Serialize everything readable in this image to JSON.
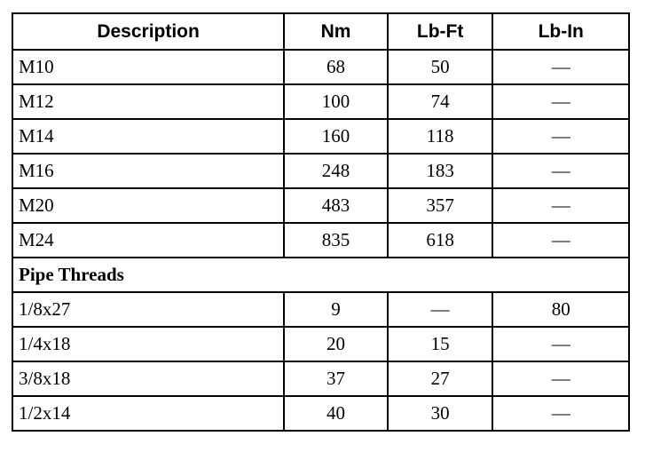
{
  "headers": [
    "Description",
    "Nm",
    "Lb-Ft",
    "Lb-In"
  ],
  "metric_rows": [
    {
      "description": "M10",
      "nm": "68",
      "lbft": "50",
      "lbin": "—"
    },
    {
      "description": "M12",
      "nm": "100",
      "lbft": "74",
      "lbin": "—"
    },
    {
      "description": "M14",
      "nm": "160",
      "lbft": "118",
      "lbin": "—"
    },
    {
      "description": "M16",
      "nm": "248",
      "lbft": "183",
      "lbin": "—"
    },
    {
      "description": "M20",
      "nm": "483",
      "lbft": "357",
      "lbin": "—"
    },
    {
      "description": "M24",
      "nm": "835",
      "lbft": "618",
      "lbin": "—"
    }
  ],
  "section_title": "Pipe Threads",
  "pipe_rows": [
    {
      "description": "1/8x27",
      "nm": "9",
      "lbft": "—",
      "lbin": "80"
    },
    {
      "description": "1/4x18",
      "nm": "20",
      "lbft": "15",
      "lbin": "—"
    },
    {
      "description": "3/8x18",
      "nm": "37",
      "lbft": "27",
      "lbin": "—"
    },
    {
      "description": "1/2x14",
      "nm": "40",
      "lbft": "30",
      "lbin": "—"
    }
  ]
}
